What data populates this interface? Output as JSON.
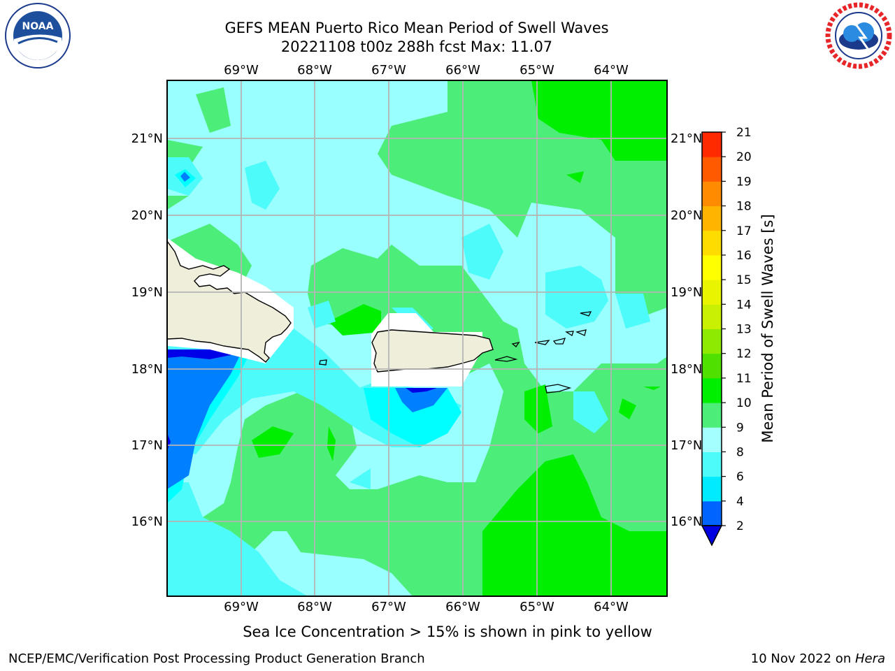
{
  "header": {
    "title_line1": "GEFS MEAN Puerto Rico Mean Period of Swell Waves",
    "title_line2": "20221108 t00z 288h fcst   Max: 11.07"
  },
  "logos": {
    "left": {
      "name": "NOAA",
      "ring_text": "NATIONAL OCEANIC AND ATMOSPHERIC ADMINISTRATION · U.S. DEPARTMENT OF COMMERCE"
    },
    "right": {
      "name": "NATIONAL WEATHER SERVICE"
    }
  },
  "map": {
    "lon_labels": [
      "69°W",
      "68°W",
      "67°W",
      "66°W",
      "65°W",
      "64°W"
    ],
    "lat_labels": [
      "21°N",
      "20°N",
      "19°N",
      "18°N",
      "17°N",
      "16°N"
    ],
    "ocean_colors": {
      "light_cyan": "#99ffff",
      "medium_green": "#4ded79",
      "bright_green": "#00ee00",
      "cyan": "#00ffff",
      "medium_cyan": "#4dfbfb",
      "blue": "#007fff",
      "dark_blue": "#0000e8"
    },
    "land_color": "#eeeeda",
    "ice_note": "Sea Ice Concentration > 15% is shown in pink to yellow"
  },
  "colorbar": {
    "label": "Mean Period of Swell Waves [s]",
    "ticks": [
      "2",
      "4",
      "6",
      "8",
      "9",
      "10",
      "11",
      "12",
      "13",
      "14",
      "15",
      "16",
      "17",
      "18",
      "19",
      "20",
      "21"
    ],
    "colors": [
      "#0064ff",
      "#00ebff",
      "#4dfbfb",
      "#a4ffff",
      "#4ded79",
      "#00ee00",
      "#4fe000",
      "#8eea00",
      "#c8f000",
      "#e8f400",
      "#ffff00",
      "#ffdc00",
      "#ffb400",
      "#ff8c00",
      "#ff5a00",
      "#ff2a00"
    ],
    "under_color": "#0000e0"
  },
  "footer": {
    "left": "NCEP/EMC/Verification Post Processing Product Generation Branch",
    "right_prefix": "10 Nov 2022 on ",
    "right_italic": "Hera"
  }
}
